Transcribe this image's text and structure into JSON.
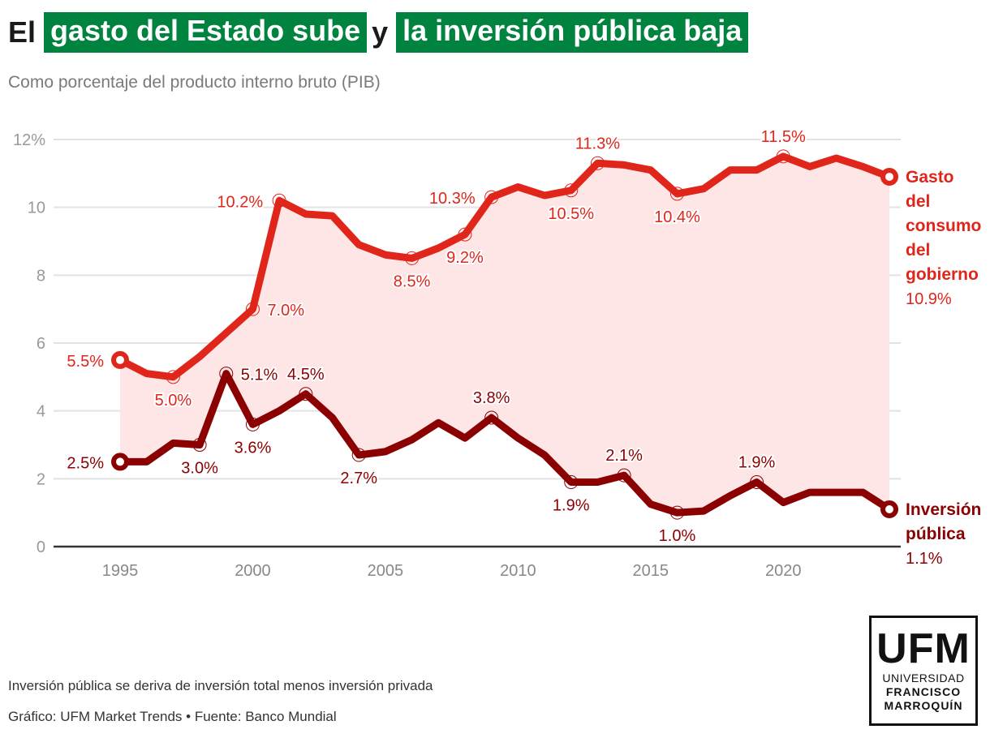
{
  "header": {
    "title_part1": "El",
    "title_highlight1": "gasto del Estado sube",
    "title_part2": "y",
    "title_highlight2": "la inversión pública baja",
    "subtitle": "Como porcentaje del producto interno bruto (PIB)"
  },
  "colors": {
    "highlight_green": "#00833f",
    "gov_consumption": "#e0251b",
    "public_investment": "#8b0000",
    "area_fill": "#fde6e5",
    "grid": "#e3e3e3",
    "axis": "#333333",
    "tick_label": "#999999"
  },
  "chart_data": {
    "type": "line",
    "title": "El gasto del Estado sube y la inversión pública baja",
    "subtitle": "Como porcentaje del producto interno bruto (PIB)",
    "xlabel": "",
    "ylabel": "",
    "x": [
      1995,
      1996,
      1997,
      1998,
      1999,
      2000,
      2001,
      2002,
      2003,
      2004,
      2005,
      2006,
      2007,
      2008,
      2009,
      2010,
      2011,
      2012,
      2013,
      2014,
      2015,
      2016,
      2017,
      2018,
      2019,
      2020,
      2021,
      2022,
      2023,
      2024
    ],
    "xlim": [
      1995,
      2024
    ],
    "ylim": [
      0,
      12
    ],
    "x_ticks": [
      1995,
      2000,
      2005,
      2010,
      2015,
      2020
    ],
    "x_tick_labels": [
      "1995",
      "2000",
      "2005",
      "2010",
      "2015",
      "2020"
    ],
    "y_ticks": [
      0,
      2,
      4,
      6,
      8,
      10,
      12
    ],
    "y_tick_labels": [
      "0",
      "2",
      "4",
      "6",
      "8",
      "10",
      "12%"
    ],
    "grid": true,
    "shaded_area_between_series": true,
    "series": [
      {
        "name": "Gasto del consumo del gobierno",
        "end_label_lines": [
          "Gasto",
          "del",
          "consumo",
          "del",
          "gobierno"
        ],
        "end_value_label": "10.9%",
        "values": [
          5.5,
          5.1,
          5.0,
          5.6,
          6.3,
          7.0,
          10.2,
          9.8,
          9.75,
          8.9,
          8.6,
          8.5,
          8.8,
          9.2,
          10.3,
          10.6,
          10.35,
          10.5,
          11.3,
          11.25,
          11.1,
          10.4,
          10.55,
          11.1,
          11.1,
          11.5,
          11.2,
          11.45,
          11.2,
          10.9
        ],
        "annotations": [
          {
            "year": 1995,
            "label": "5.5%",
            "pos": "left"
          },
          {
            "year": 1997,
            "label": "5.0%",
            "pos": "below"
          },
          {
            "year": 2000,
            "label": "7.0%",
            "pos": "right"
          },
          {
            "year": 2001,
            "label": "10.2%",
            "pos": "left"
          },
          {
            "year": 2006,
            "label": "8.5%",
            "pos": "below"
          },
          {
            "year": 2008,
            "label": "9.2%",
            "pos": "below"
          },
          {
            "year": 2009,
            "label": "10.3%",
            "pos": "left"
          },
          {
            "year": 2012,
            "label": "10.5%",
            "pos": "below"
          },
          {
            "year": 2013,
            "label": "11.3%",
            "pos": "above"
          },
          {
            "year": 2016,
            "label": "10.4%",
            "pos": "below"
          },
          {
            "year": 2020,
            "label": "11.5%",
            "pos": "above"
          }
        ]
      },
      {
        "name": "Inversión pública",
        "end_label_lines": [
          "Inversión",
          "pública"
        ],
        "end_value_label": "1.1%",
        "values": [
          2.5,
          2.5,
          3.05,
          3.0,
          5.1,
          3.6,
          4.0,
          4.5,
          3.8,
          2.7,
          2.8,
          3.15,
          3.65,
          3.2,
          3.8,
          3.2,
          2.7,
          1.9,
          1.9,
          2.1,
          1.25,
          1.0,
          1.05,
          1.5,
          1.9,
          1.3,
          1.6,
          1.6,
          1.6,
          1.1
        ],
        "annotations": [
          {
            "year": 1995,
            "label": "2.5%",
            "pos": "left"
          },
          {
            "year": 1998,
            "label": "3.0%",
            "pos": "below"
          },
          {
            "year": 1999,
            "label": "5.1%",
            "pos": "right"
          },
          {
            "year": 2000,
            "label": "3.6%",
            "pos": "below"
          },
          {
            "year": 2002,
            "label": "4.5%",
            "pos": "above"
          },
          {
            "year": 2004,
            "label": "2.7%",
            "pos": "below"
          },
          {
            "year": 2009,
            "label": "3.8%",
            "pos": "above"
          },
          {
            "year": 2012,
            "label": "1.9%",
            "pos": "below"
          },
          {
            "year": 2014,
            "label": "2.1%",
            "pos": "above"
          },
          {
            "year": 2016,
            "label": "1.0%",
            "pos": "below"
          },
          {
            "year": 2019,
            "label": "1.9%",
            "pos": "above"
          }
        ]
      }
    ]
  },
  "footer": {
    "note": "Inversión pública se deriva de inversión total menos inversión privada",
    "credit": "Gráfico: UFM Market Trends • Fuente: Banco Mundial"
  },
  "logo": {
    "big": "UFM",
    "line1": "UNIVERSIDAD",
    "line2": "FRANCISCO",
    "line3": "MARROQUÍN"
  }
}
